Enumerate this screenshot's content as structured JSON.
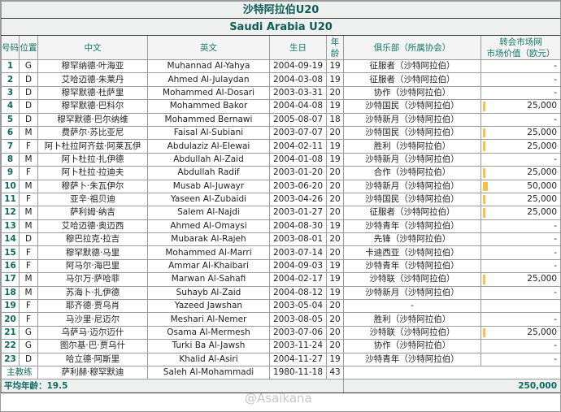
{
  "title_cn": "沙特阿拉伯U20",
  "title_en": "Saudi Arabia U20",
  "headers": {
    "number": "号码",
    "position": "位置",
    "name_cn": "中文",
    "name_en": "英文",
    "birthday": "生日",
    "age": "年龄",
    "club": "俱乐部（所属协会）",
    "value_line1": "转会市场网",
    "value_line2": "市场价值（欧元）"
  },
  "players": [
    {
      "no": "1",
      "pos": "G",
      "cn": "穆罕纳德·叶海亚",
      "en": "Muhannad Al-Yahya",
      "dob": "2004-09-19",
      "age": "19",
      "club": "征服者（沙特阿拉伯）",
      "value": "-"
    },
    {
      "no": "2",
      "pos": "D",
      "cn": "艾哈迈德·朱莱丹",
      "en": "Ahmed Al-Julaydan",
      "dob": "2004-03-08",
      "age": "19",
      "club": "征服者（沙特阿拉伯）",
      "value": "-"
    },
    {
      "no": "3",
      "pos": "D",
      "cn": "穆罕默德·杜萨里",
      "en": "Mohammed Al-Dosari",
      "dob": "2003-03-31",
      "age": "20",
      "club": "协作（沙特阿拉伯）",
      "value": "-"
    },
    {
      "no": "4",
      "pos": "D",
      "cn": "穆罕默德·巴科尔",
      "en": "Mohammed Bakor",
      "dob": "2004-04-08",
      "age": "19",
      "club": "沙特国民（沙特阿拉伯）",
      "value": "25,000"
    },
    {
      "no": "5",
      "pos": "D",
      "cn": "穆罕默德·巴尔纳维",
      "en": "Mohammed Bernawi",
      "dob": "2005-08-07",
      "age": "18",
      "club": "沙特新月（沙特阿拉伯）",
      "value": "-"
    },
    {
      "no": "6",
      "pos": "M",
      "cn": "费萨尔·苏比亚尼",
      "en": "Faisal Al-Subiani",
      "dob": "2003-07-07",
      "age": "20",
      "club": "沙特国民（沙特阿拉伯）",
      "value": "25,000"
    },
    {
      "no": "7",
      "pos": "F",
      "cn": "阿卜杜拉阿齐兹·阿莱瓦伊",
      "en": "Abdulaziz Al-Elewai",
      "dob": "2004-02-11",
      "age": "19",
      "club": "胜利（沙特阿拉伯）",
      "value": "25,000"
    },
    {
      "no": "8",
      "pos": "M",
      "cn": "阿卜杜拉·扎伊德",
      "en": "Abdullah Al-Zaid",
      "dob": "2004-01-08",
      "age": "19",
      "club": "沙特新月（沙特阿拉伯）",
      "value": "-"
    },
    {
      "no": "9",
      "pos": "F",
      "cn": "阿卜杜拉·拉迪夫",
      "en": "Abdullah Radif",
      "dob": "2003-01-20",
      "age": "20",
      "club": "合作（沙特阿拉伯）",
      "value": "25,000"
    },
    {
      "no": "10",
      "pos": "M",
      "cn": "穆萨卜·朱瓦伊尔",
      "en": "Musab Al-Juwayr",
      "dob": "2003-06-20",
      "age": "20",
      "club": "沙特新月（沙特阿拉伯）",
      "value": "50,000"
    },
    {
      "no": "11",
      "pos": "F",
      "cn": "亚辛·祖贝迪",
      "en": "Yaseen Al-Zubaidi",
      "dob": "2003-04-26",
      "age": "20",
      "club": "沙特国民（沙特阿拉伯）",
      "value": "25,000"
    },
    {
      "no": "12",
      "pos": "M",
      "cn": "萨利姆·纳吉",
      "en": "Salem Al-Najdi",
      "dob": "2003-01-27",
      "age": "20",
      "club": "征服者（沙特阿拉伯）",
      "value": "25,000"
    },
    {
      "no": "13",
      "pos": "M",
      "cn": "艾哈迈德·奥迈西",
      "en": "Ahmed Al-Omaysi",
      "dob": "2004-08-30",
      "age": "19",
      "club": "沙特青年（沙特阿拉伯）",
      "value": "-"
    },
    {
      "no": "14",
      "pos": "D",
      "cn": "穆巴拉克·拉吉",
      "en": "Mubarak Al-Rajeh",
      "dob": "2003-08-01",
      "age": "20",
      "club": "先锋（沙特阿拉伯）",
      "value": "-"
    },
    {
      "no": "15",
      "pos": "F",
      "cn": "穆罕默德·马里",
      "en": "Mohammed Al-Marri",
      "dob": "2003-07-14",
      "age": "20",
      "club": "卡迪西亚（沙特阿拉伯）",
      "value": "-"
    },
    {
      "no": "16",
      "pos": "F",
      "cn": "阿马尔·海巴里",
      "en": "Ammar Al-Khaibari",
      "dob": "2004-09-03",
      "age": "19",
      "club": "沙特青年（沙特阿拉伯）",
      "value": "-"
    },
    {
      "no": "17",
      "pos": "M",
      "cn": "马尔万·萨哈菲",
      "en": "Marwan Al-Sahafi",
      "dob": "2004-02-17",
      "age": "19",
      "club": "沙特联（沙特阿拉伯）",
      "value": "25,000"
    },
    {
      "no": "18",
      "pos": "M",
      "cn": "苏海卜·扎伊德",
      "en": "Suhayb Al-Zaid",
      "dob": "2004-08-12",
      "age": "19",
      "club": "沙特新月（沙特阿拉伯）",
      "value": "-"
    },
    {
      "no": "19",
      "pos": "F",
      "cn": "耶齐德·贾乌肖",
      "en": "Yazeed Jawshan",
      "dob": "2003-05-04",
      "age": "20",
      "club": "-",
      "value": ""
    },
    {
      "no": "20",
      "pos": "F",
      "cn": "马沙里·尼迈尔",
      "en": "Meshari Al-Nemer",
      "dob": "2003-08-05",
      "age": "20",
      "club": "胜利（沙特阿拉伯）",
      "value": "-"
    },
    {
      "no": "21",
      "pos": "G",
      "cn": "乌萨马·迈尔迈什",
      "en": "Osama Al-Mermesh",
      "dob": "2003-07-06",
      "age": "20",
      "club": "沙特联（沙特阿拉伯）",
      "value": "25,000"
    },
    {
      "no": "22",
      "pos": "G",
      "cn": "图尔基·巴·贾乌什",
      "en": "Turki Ba Al-Jawsh",
      "dob": "2003-11-24",
      "age": "20",
      "club": "协作（沙特阿拉伯）",
      "value": "-"
    },
    {
      "no": "23",
      "pos": "D",
      "cn": "哈立德·阿斯里",
      "en": "Khalid Al-Asiri",
      "dob": "2004-11-27",
      "age": "19",
      "club": "沙特青年（沙特阿拉伯）",
      "value": "-"
    }
  ],
  "coach": {
    "label": "主教练",
    "cn": "萨利赫·穆罕默迪",
    "en": "Saleh Al-Mohammadi",
    "dob": "1980-11-18",
    "age": "43"
  },
  "footer": {
    "avg_age": "平均年龄：19.5",
    "total_value": "250,000"
  },
  "watermark": "@Asaikana",
  "colors": {
    "accent": "#0e6a60",
    "bar": "#f2c24a",
    "header_bg": "#eef0ef"
  }
}
